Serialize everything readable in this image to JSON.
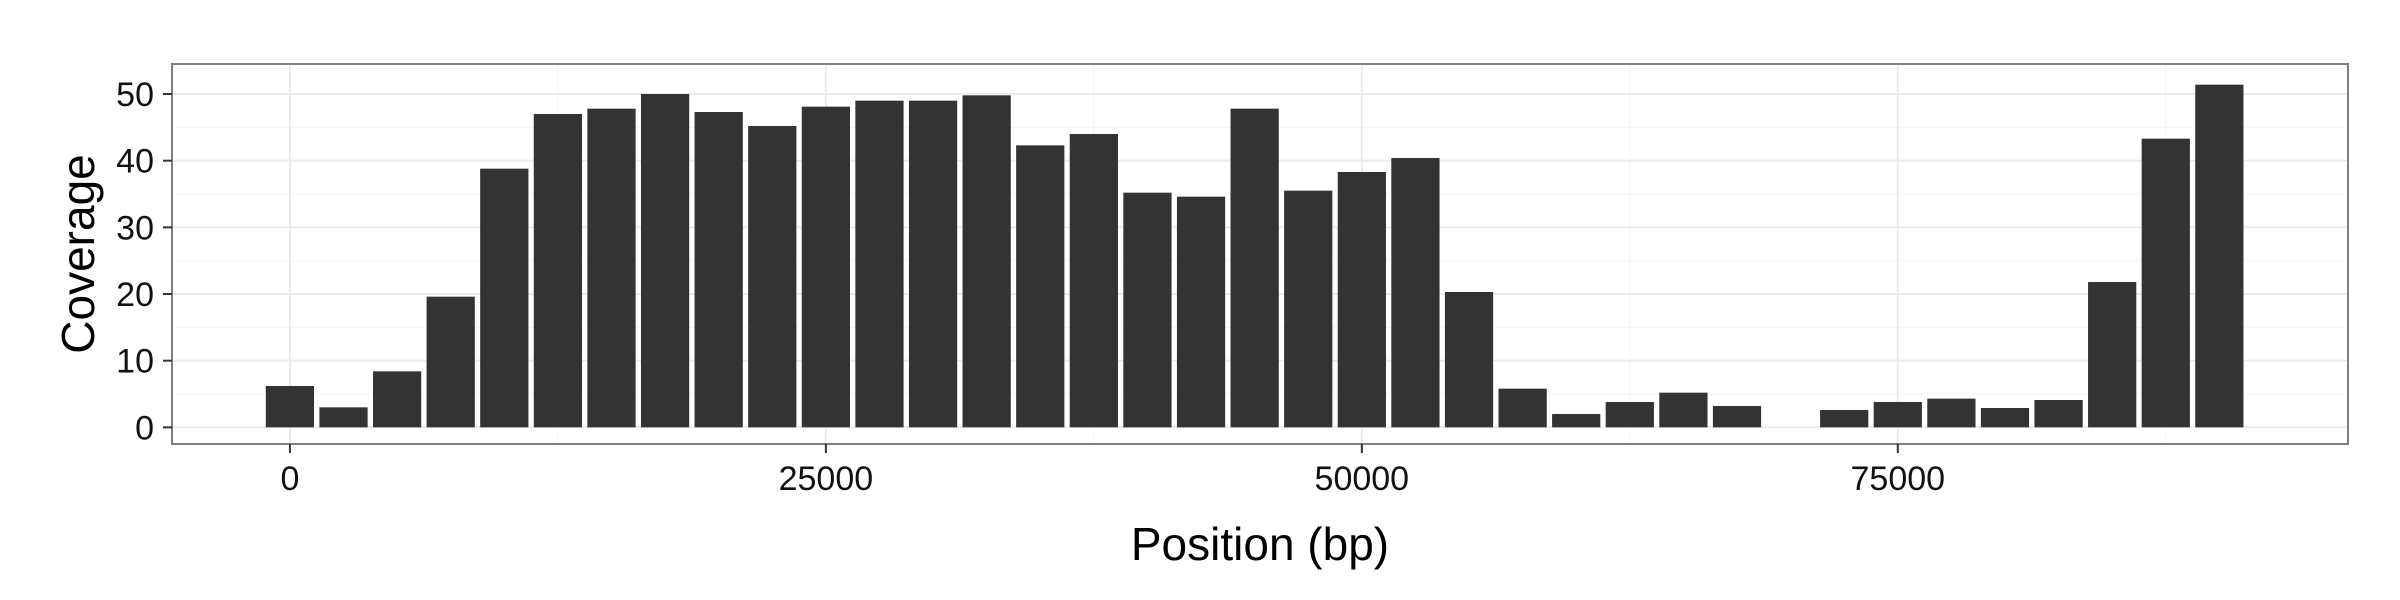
{
  "chart_data": {
    "type": "bar",
    "title": "",
    "xlabel": "Position (bp)",
    "ylabel": "Coverage",
    "xlim": [
      -5500,
      96000
    ],
    "ylim": [
      -2.5,
      54.5
    ],
    "grid": true,
    "legend": "none",
    "x_ticks": [
      0,
      25000,
      50000,
      75000
    ],
    "x_tick_labels": [
      "0",
      "25000",
      "50000",
      "75000"
    ],
    "y_ticks": [
      0,
      10,
      20,
      30,
      40,
      50
    ],
    "y_tick_labels": [
      "0",
      "10",
      "20",
      "30",
      "40",
      "50"
    ],
    "bin_width": 2500,
    "x": [
      0,
      2500,
      5000,
      7500,
      10000,
      12500,
      15000,
      17500,
      20000,
      22500,
      25000,
      27500,
      30000,
      32500,
      35000,
      37500,
      40000,
      42500,
      45000,
      47500,
      50000,
      52500,
      55000,
      57500,
      60000,
      62500,
      65000,
      67500,
      70000,
      72500,
      75000,
      77500,
      80000,
      82500,
      85000,
      87500,
      90000
    ],
    "values": [
      6.2,
      3.0,
      8.4,
      19.6,
      38.8,
      47.0,
      47.8,
      50.0,
      47.3,
      45.2,
      48.1,
      49.0,
      49.0,
      49.8,
      42.3,
      44.0,
      35.2,
      34.6,
      47.8,
      35.5,
      38.3,
      40.4,
      20.3,
      5.8,
      2.0,
      3.8,
      5.2,
      3.2,
      0,
      2.6,
      3.8,
      4.3,
      2.9,
      4.1,
      21.8,
      43.3,
      51.4
    ],
    "colors": {
      "bar": "#333333",
      "panel_border": "#7f7f7f",
      "grid_major": "#ebebeb",
      "grid_minor": "#f5f5f5",
      "background": "#ffffff"
    }
  }
}
